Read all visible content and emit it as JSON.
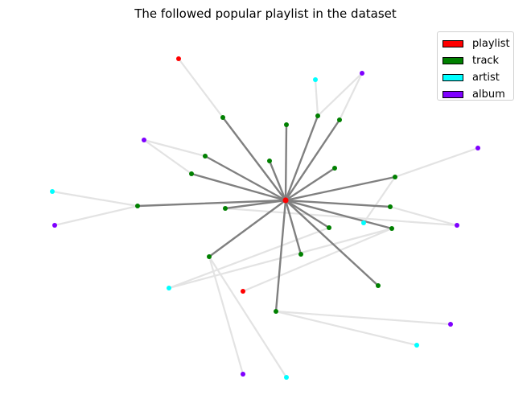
{
  "title": "The followed popular playlist in the dataset",
  "legend": [
    {
      "label": "playlist",
      "color": "#ff0000"
    },
    {
      "label": "track",
      "color": "#008000"
    },
    {
      "label": "artist",
      "color": "#00ffff"
    },
    {
      "label": "album",
      "color": "#7f00ff"
    }
  ],
  "colors": {
    "hub_edge": "#808080",
    "leaf_edge": "#e3e3e3"
  },
  "graph": {
    "hub": "p0",
    "nodes": [
      {
        "id": "p0",
        "type": "playlist"
      },
      {
        "id": "t1",
        "type": "track"
      },
      {
        "id": "t2",
        "type": "track"
      },
      {
        "id": "t3",
        "type": "track"
      },
      {
        "id": "t4",
        "type": "track"
      },
      {
        "id": "t5",
        "type": "track"
      },
      {
        "id": "t6",
        "type": "track"
      },
      {
        "id": "t7",
        "type": "track"
      },
      {
        "id": "t8",
        "type": "track"
      },
      {
        "id": "t9",
        "type": "track"
      },
      {
        "id": "t10",
        "type": "track"
      },
      {
        "id": "t11",
        "type": "track"
      },
      {
        "id": "t12",
        "type": "track"
      },
      {
        "id": "t13",
        "type": "track"
      },
      {
        "id": "t14",
        "type": "track"
      },
      {
        "id": "t15",
        "type": "track"
      },
      {
        "id": "t16",
        "type": "track"
      },
      {
        "id": "t17",
        "type": "track"
      },
      {
        "id": "t18",
        "type": "track"
      },
      {
        "id": "p1",
        "type": "playlist"
      },
      {
        "id": "p2",
        "type": "playlist"
      },
      {
        "id": "ar1",
        "type": "artist"
      },
      {
        "id": "ar2",
        "type": "artist"
      },
      {
        "id": "ar3",
        "type": "artist"
      },
      {
        "id": "ar4",
        "type": "artist"
      },
      {
        "id": "ar5",
        "type": "artist"
      },
      {
        "id": "ar6",
        "type": "artist"
      },
      {
        "id": "al1",
        "type": "album"
      },
      {
        "id": "al2",
        "type": "album"
      },
      {
        "id": "al3",
        "type": "album"
      },
      {
        "id": "al4",
        "type": "album"
      },
      {
        "id": "al5",
        "type": "album"
      },
      {
        "id": "al6",
        "type": "album"
      },
      {
        "id": "al7",
        "type": "album"
      }
    ],
    "edges": [
      [
        "p0",
        "t1"
      ],
      [
        "p0",
        "t2"
      ],
      [
        "p0",
        "t3"
      ],
      [
        "p0",
        "t4"
      ],
      [
        "p0",
        "t5"
      ],
      [
        "p0",
        "t6"
      ],
      [
        "p0",
        "t7"
      ],
      [
        "p0",
        "t8"
      ],
      [
        "p0",
        "t9"
      ],
      [
        "p0",
        "t10"
      ],
      [
        "p0",
        "t11"
      ],
      [
        "p0",
        "t12"
      ],
      [
        "p0",
        "t13"
      ],
      [
        "p0",
        "t14"
      ],
      [
        "p0",
        "t15"
      ],
      [
        "p0",
        "t16"
      ],
      [
        "p0",
        "t17"
      ],
      [
        "p0",
        "t18"
      ],
      [
        "t1",
        "p1"
      ],
      [
        "t3",
        "ar1"
      ],
      [
        "t3",
        "al1"
      ],
      [
        "t4",
        "al1"
      ],
      [
        "t5",
        "al2"
      ],
      [
        "t7",
        "al2"
      ],
      [
        "t9",
        "ar2"
      ],
      [
        "t9",
        "al3"
      ],
      [
        "t10",
        "al4"
      ],
      [
        "t10",
        "ar3"
      ],
      [
        "t11",
        "al5"
      ],
      [
        "t12",
        "al5"
      ],
      [
        "t13",
        "ar4"
      ],
      [
        "t14",
        "ar4"
      ],
      [
        "t14",
        "p2"
      ],
      [
        "t15",
        "al6"
      ],
      [
        "t15",
        "ar5"
      ],
      [
        "t16",
        "al7"
      ],
      [
        "t16",
        "ar6"
      ]
    ]
  }
}
